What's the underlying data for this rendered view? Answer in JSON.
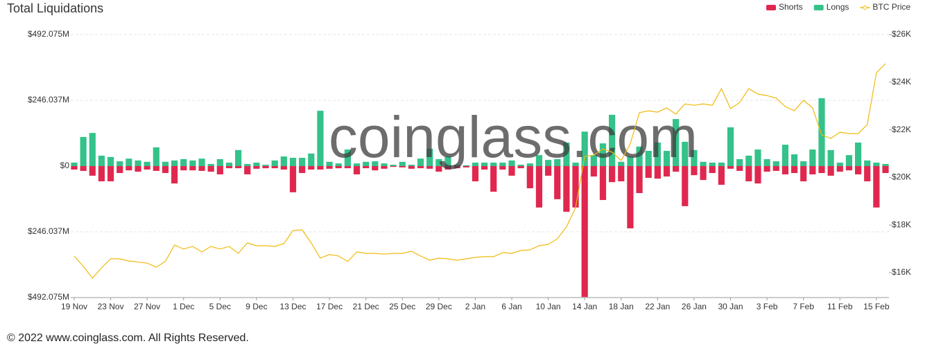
{
  "chart_data": {
    "type": "bar",
    "title": "Total Liquidations",
    "watermark": "coinglass.com",
    "footer": "© 2022 www.coinglass.com. All Rights Reserved.",
    "categories": [
      "19 Nov",
      null,
      null,
      null,
      "23 Nov",
      null,
      null,
      null,
      "27 Nov",
      null,
      null,
      null,
      "1 Dec",
      null,
      null,
      null,
      "5 Dec",
      null,
      null,
      null,
      "9 Dec",
      null,
      null,
      null,
      "13 Dec",
      null,
      null,
      null,
      "17 Dec",
      null,
      null,
      null,
      "21 Dec",
      null,
      null,
      null,
      "25 Dec",
      null,
      null,
      null,
      "29 Dec",
      null,
      null,
      null,
      "2 Jan",
      null,
      null,
      null,
      "6 Jan",
      null,
      null,
      null,
      "10 Jan",
      null,
      null,
      null,
      "14 Jan",
      null,
      null,
      null,
      "18 Jan",
      null,
      null,
      null,
      "22 Jan",
      null,
      null,
      null,
      "26 Jan",
      null,
      null,
      null,
      "30 Jan",
      null,
      null,
      null,
      "3 Feb",
      null,
      null,
      null,
      "7 Feb",
      null,
      null,
      null,
      "11 Feb",
      null,
      null,
      null,
      "15 Feb",
      null
    ],
    "series": [
      {
        "name": "Shorts",
        "color": "#e0284f",
        "values": [
          -13,
          -18,
          -36,
          -57,
          -57,
          -26,
          -16,
          -21,
          -13,
          -18,
          -26,
          -65,
          -16,
          -16,
          -18,
          -21,
          -31,
          -8,
          -8,
          -31,
          -10,
          -8,
          -8,
          -13,
          -98,
          -26,
          -13,
          -13,
          -10,
          -8,
          -8,
          -31,
          -8,
          -16,
          -10,
          -3,
          -5,
          -10,
          -8,
          -10,
          -21,
          -13,
          -8,
          -5,
          -57,
          -13,
          -96,
          -13,
          -36,
          -8,
          -83,
          -155,
          -36,
          -124,
          -171,
          -155,
          -490,
          -39,
          -127,
          -60,
          -57,
          -233,
          -101,
          -44,
          -47,
          -39,
          -21,
          -150,
          -34,
          -52,
          -26,
          -70,
          -10,
          -18,
          -57,
          -65,
          -21,
          -18,
          -31,
          -26,
          -57,
          -31,
          -26,
          -36,
          -21,
          -16,
          -31,
          -57,
          -155,
          -26
        ]
      },
      {
        "name": "Longs",
        "color": "#34c28a",
        "values": [
          13,
          109,
          124,
          39,
          34,
          18,
          28,
          21,
          16,
          70,
          16,
          21,
          26,
          21,
          28,
          8,
          26,
          13,
          60,
          8,
          13,
          5,
          21,
          36,
          31,
          31,
          47,
          207,
          16,
          10,
          62,
          10,
          16,
          18,
          10,
          5,
          16,
          5,
          28,
          65,
          26,
          36,
          5,
          3,
          13,
          13,
          13,
          13,
          21,
          5,
          10,
          41,
          23,
          26,
          88,
          13,
          129,
          41,
          85,
          192,
          16,
          36,
          73,
          57,
          88,
          57,
          176,
          91,
          60,
          16,
          13,
          13,
          145,
          26,
          39,
          62,
          26,
          18,
          80,
          44,
          18,
          62,
          254,
          60,
          13,
          41,
          88,
          21,
          13,
          8
        ]
      },
      {
        "name": "BTC Price",
        "color": "#f0b90b",
        "type": "line",
        "axis": "y2",
        "values": [
          16700,
          16260,
          15770,
          16200,
          16580,
          16580,
          16490,
          16440,
          16400,
          16230,
          16470,
          17160,
          16990,
          17100,
          16870,
          17100,
          16990,
          17100,
          16810,
          17250,
          17130,
          17130,
          17100,
          17220,
          17770,
          17800,
          17250,
          16610,
          16760,
          16700,
          16470,
          16870,
          16810,
          16810,
          16780,
          16810,
          16810,
          16900,
          16700,
          16520,
          16610,
          16580,
          16520,
          16580,
          16640,
          16670,
          16670,
          16840,
          16810,
          16930,
          16960,
          17130,
          17190,
          17420,
          17920,
          18730,
          20880,
          20940,
          21200,
          21060,
          20710,
          21410,
          22720,
          22800,
          22740,
          22920,
          22660,
          23090,
          23030,
          23090,
          23030,
          23730,
          22890,
          23150,
          23730,
          23500,
          23440,
          23330,
          22980,
          22800,
          23240,
          22920,
          21780,
          21640,
          21900,
          21840,
          21840,
          22220,
          24400,
          24780
        ]
      }
    ],
    "ylim": [
      -492.075,
      492.075
    ],
    "yticks": [
      {
        "value": 492.075,
        "label": "$492.075M"
      },
      {
        "value": 246.037,
        "label": "$246.037M"
      },
      {
        "value": 0,
        "label": "$0"
      },
      {
        "value": -246.037,
        "label": "$246.037M"
      },
      {
        "value": -492.075,
        "label": "$492.075M"
      }
    ],
    "y2lim": [
      14953,
      26000
    ],
    "y2ticks": [
      {
        "value": 26000,
        "label": "$26K"
      },
      {
        "value": 24000,
        "label": "$24K"
      },
      {
        "value": 22000,
        "label": "$22K"
      },
      {
        "value": 20000,
        "label": "$20K"
      },
      {
        "value": 18000,
        "label": "$18K"
      },
      {
        "value": 16000,
        "label": "$16K"
      }
    ],
    "grid": true,
    "legend": "top-right"
  }
}
